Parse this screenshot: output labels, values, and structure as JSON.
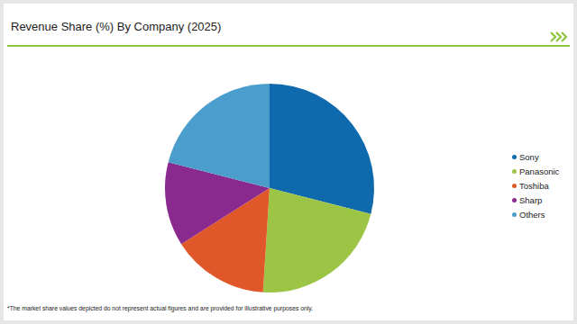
{
  "chart_data": {
    "type": "pie",
    "title": "Revenue Share (%) By Company (2025)",
    "categories": [
      "Sony",
      "Panasonic",
      "Toshiba",
      "Sharp",
      "Others"
    ],
    "values": [
      29,
      22,
      15,
      13,
      21
    ],
    "colors": [
      "#0f6aad",
      "#9dc545",
      "#e0582a",
      "#8b2a8e",
      "#4b9dcb"
    ],
    "legend": "right",
    "annotations": [
      "*The market share values depicted do not represent actual figures and are provided for illustrative purposes only."
    ]
  }
}
